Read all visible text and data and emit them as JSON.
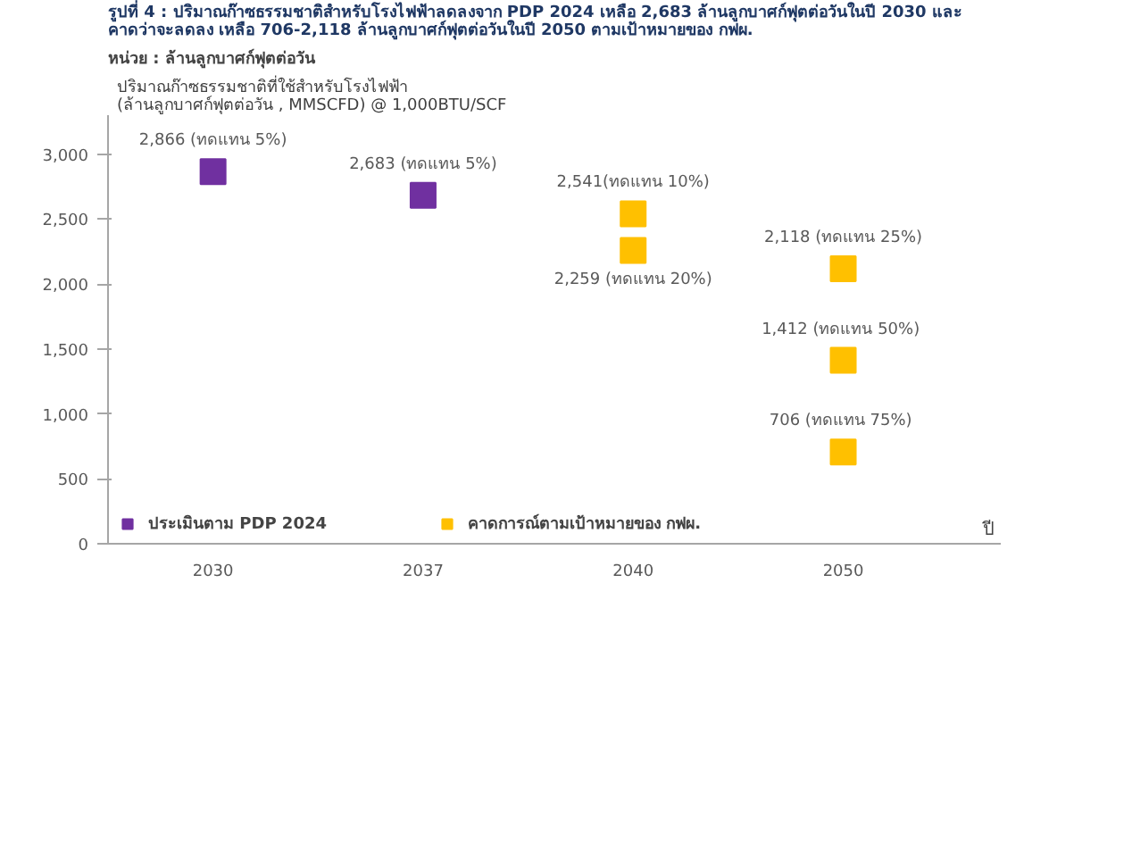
{
  "chart_data": {
    "type": "scatter",
    "title": "รูปที่ 4 : ปริมาณก๊าซธรรมชาติสำหรับโรงไฟฟ้าลดลงจาก PDP 2024 เหลือ 2,683 ล้านลูกบาศก์ฟุตต่อวันในปี 2030 และ คาดว่าจะลดลง เหลือ 706-2,118 ล้านลูกบาศก์ฟุตต่อวันในปี 2050 ตามเป้าหมายของ กฟผ.",
    "subtitle": "หน่วย : ล้านลูกบาศก์ฟุตต่อวัน",
    "ylabel": "ปริมาณก๊าซธรรมชาติที่ใช้สำหรับโรงไฟฟ้า\n(ล้านลูกบาศก์ฟุตต่อวัน , MMSCFD) @ 1,000BTU/SCF",
    "xlabel": "ปี",
    "categories": [
      "2030",
      "2037",
      "2040",
      "2050"
    ],
    "series": [
      {
        "name": "ประเมินตาม PDP 2024",
        "color": "#7030a0",
        "values": [
          2866,
          2683,
          null,
          null
        ],
        "value_labels": [
          "2,866 (ทดแทน 5%)",
          "2,683 (ทดแทน 5%)",
          null,
          null
        ]
      },
      {
        "name": "คาดการณ์ตามเป้าหมายของ กฟผ.",
        "color": "#ffc000",
        "values": [
          null,
          null,
          2541,
          2118
        ],
        "value_labels": [
          null,
          null,
          "2,541(ทดแทน 10%)",
          "2,118 (ทดแทน 25%)"
        ]
      },
      {
        "color": "#ffc000",
        "values": [
          null,
          null,
          2259,
          1412
        ],
        "value_labels": [
          null,
          null,
          "2,259 (ทดแทน 20%)",
          "1,412  (ทดแทน 50%)"
        ]
      },
      {
        "color": "#ffc000",
        "values": [
          null,
          null,
          null,
          706
        ],
        "value_labels": [
          null,
          null,
          null,
          "706  (ทดแทน 75%)"
        ]
      }
    ],
    "ylim": [
      0,
      3300
    ],
    "yticks": [
      0,
      500,
      {
        "value": 1000,
        "label": "1,000"
      },
      {
        "value": 1500,
        "label": "1,500"
      },
      {
        "value": 2000,
        "label": "2,000"
      },
      {
        "value": 2500,
        "label": "2,500"
      },
      {
        "value": 3000,
        "label": "3,000"
      }
    ],
    "marker": "square",
    "grid": false,
    "legend": "bottom"
  }
}
